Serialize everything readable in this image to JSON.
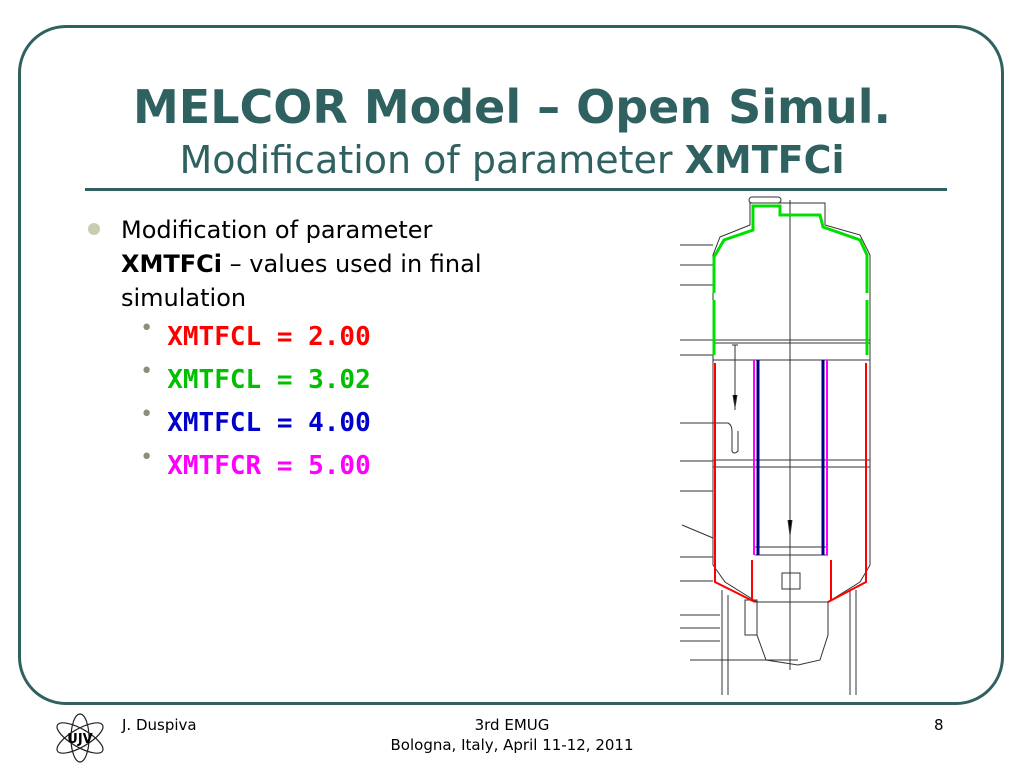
{
  "slide": {
    "title": "MELCOR Model – Open Simul.",
    "subtitle_prefix": "Modification of parameter ",
    "subtitle_bold": "XMTFCi",
    "bullet": {
      "line1": "Modification of parameter",
      "bold": "XMTFCi",
      "rest": " – values used in final",
      "line3": "simulation"
    },
    "subitems": [
      {
        "text": "XMTFCL = 2.00",
        "color": "#ff0000"
      },
      {
        "text": "XMTFCL = 3.02",
        "color": "#00c000"
      },
      {
        "text": "XMTFCL = 4.00",
        "color": "#0000cc"
      },
      {
        "text": "XMTFCR = 5.00",
        "color": "#ff00ff"
      }
    ],
    "bullet_glyph": "•"
  },
  "footer": {
    "author": "J. Duspiva",
    "event": "3rd EMUG",
    "location": "Bologna, Italy, April 11-12, 2011",
    "page": "8",
    "logo_text": "UJV"
  },
  "colors": {
    "theme": "#2f6160",
    "green": "#00e000",
    "red": "#ff0000",
    "blue": "#000080",
    "magenta": "#ff00ff"
  }
}
